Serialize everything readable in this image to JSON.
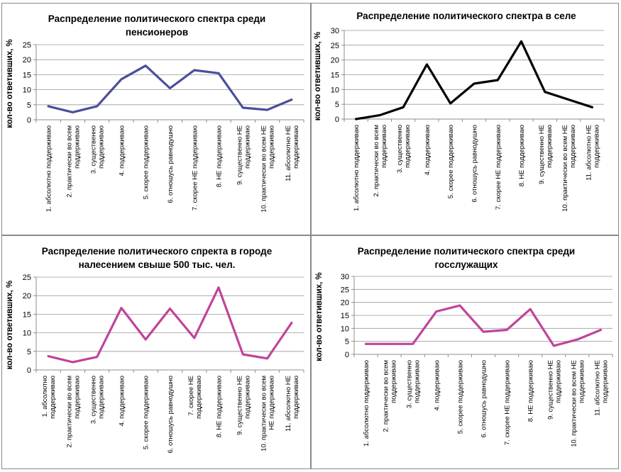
{
  "chart_data": [
    {
      "type": "line",
      "title": [
        "Распределение политического спектра среди",
        "пенсионеров"
      ],
      "ylabel": "кол-во ответивших, %",
      "xlabel": "",
      "ylim": [
        0,
        25
      ],
      "yticks": [
        0,
        5,
        10,
        15,
        20,
        25
      ],
      "color": "#4a4f9a",
      "categories": [
        [
          "1. абсолютно поддерживаю"
        ],
        [
          "2. практически во всем",
          "поддерживаю"
        ],
        [
          "3. существенно",
          "поддерживаю"
        ],
        [
          "4. поддерживаю"
        ],
        [
          "5. скорее поддерживаю"
        ],
        [
          "6. отношусь равнодушно"
        ],
        [
          "7. скорее НЕ поддерживаю"
        ],
        [
          "8. НЕ поддерживаю"
        ],
        [
          "9. существенно НЕ",
          "поддерживаю"
        ],
        [
          "10. практически во всем НЕ",
          "поддерживаю"
        ],
        [
          "11. абсолютно НЕ",
          "поддерживаю"
        ]
      ],
      "values": [
        4.5,
        2.5,
        4.5,
        13.5,
        18,
        10.5,
        16.5,
        15.5,
        4,
        3.3,
        6.7
      ]
    },
    {
      "type": "line",
      "title": [
        "Распределение политического спектра в селе"
      ],
      "ylabel": "кол-во ответивших, %",
      "xlabel": "",
      "ylim": [
        0,
        30
      ],
      "yticks": [
        0,
        5,
        10,
        15,
        20,
        25,
        30
      ],
      "color": "#000000",
      "categories": [
        [
          "1. абсолютно поддерживаю"
        ],
        [
          "2. практически во всем",
          "поддерживаю"
        ],
        [
          "3. существенно",
          "поддерживаю"
        ],
        [
          "4. поддерживаю"
        ],
        [
          "5. скорее поддерживаю"
        ],
        [
          "6. отношусь равнодушно"
        ],
        [
          "7. скорее НЕ поддерживаю"
        ],
        [
          "8. НЕ поддерживаю"
        ],
        [
          "9. существенно НЕ",
          "поддерживаю"
        ],
        [
          "10. практически во всем НЕ",
          "поддерживаю"
        ],
        [
          "11. абсолютно НЕ",
          "поддерживаю"
        ]
      ],
      "values": [
        0,
        1.3,
        4,
        18.5,
        5.3,
        12,
        13.2,
        26.3,
        9.2,
        6.6,
        4
      ]
    },
    {
      "type": "line",
      "title": [
        "Распределение политического спректа в городе",
        "налесением свыше 500 тыс. чел."
      ],
      "ylabel": "кол-во ответивших, %",
      "xlabel": "",
      "ylim": [
        0,
        25
      ],
      "yticks": [
        0,
        5,
        10,
        15,
        20,
        25
      ],
      "color": "#c0449a",
      "categories": [
        [
          "1. абсолютно",
          "поддерживаю"
        ],
        [
          "2. практически во всем",
          "поддерживаю"
        ],
        [
          "3. существенно",
          "поддерживаю"
        ],
        [
          "4. поддерживаю"
        ],
        [
          "5. скорее поддерживаю"
        ],
        [
          "6. отношусь равнодушно"
        ],
        [
          "7. скорее НЕ",
          "поддерживаю"
        ],
        [
          "8. НЕ поддерживаю"
        ],
        [
          "9. существенно НЕ",
          "поддерживаю"
        ],
        [
          "10. практически во всем",
          "НЕ поддерживаю"
        ],
        [
          "11. абсолютно НЕ",
          "поддерживаю"
        ]
      ],
      "values": [
        3.7,
        2.1,
        3.5,
        16.7,
        8.2,
        16.5,
        8.6,
        22.2,
        4.2,
        3.1,
        12.7
      ]
    },
    {
      "type": "line",
      "title": [
        "Распределение политического спектра среди",
        "госслужащих"
      ],
      "ylabel": "кол-во ответивших, %",
      "xlabel": "",
      "ylim": [
        0,
        30
      ],
      "yticks": [
        0,
        5,
        10,
        15,
        20,
        25,
        30
      ],
      "color": "#c0449a",
      "categories": [
        [
          "1. абсолютно поддерживаю"
        ],
        [
          "2. практически во всем",
          "поддерживаю"
        ],
        [
          "3. существенно",
          "поддерживаю"
        ],
        [
          "4. поддерживаю"
        ],
        [
          "5. скорее поддерживаю"
        ],
        [
          "6. отношусь равнодушно"
        ],
        [
          "7. скорее НЕ поддерживаю"
        ],
        [
          "8. НЕ поддерживаю"
        ],
        [
          "9. существенно НЕ",
          "поддерживаю"
        ],
        [
          "10. практически во всем НЕ",
          "поддерживаю"
        ],
        [
          "11. абсолютно НЕ",
          "поддерживаю"
        ]
      ],
      "values": [
        4,
        4,
        4,
        16.5,
        18.8,
        8.7,
        9.4,
        17.4,
        3.3,
        5.7,
        9.4
      ]
    }
  ]
}
